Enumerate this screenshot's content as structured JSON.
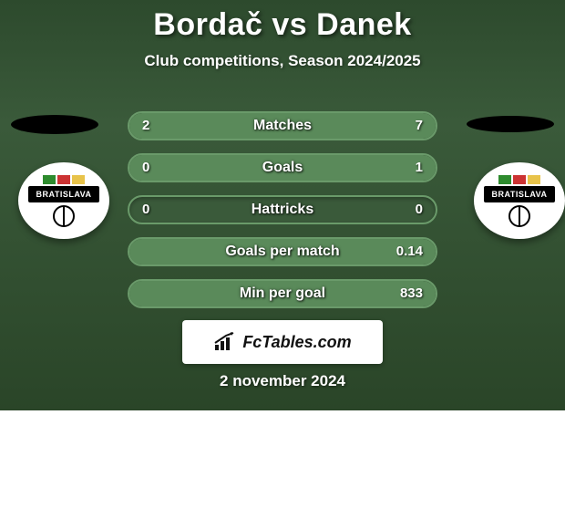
{
  "title": "Bordač vs Danek",
  "subtitle": "Club competitions, Season 2024/2025",
  "date": "2 november 2024",
  "brand": "FcTables.com",
  "badge_text": "BRATISLAVA",
  "colors": {
    "bg_gradient_top": "#2d4a2d",
    "bg_gradient_mid": "#3a5a3a",
    "bg_gradient_bottom": "#2a4528",
    "bar_border": "#6a9a6a",
    "bar_bg": "#3a5a3a",
    "bar_fill": "#5a8a5a",
    "text": "#ffffff",
    "oval": "#000000",
    "badge_bg": "#ffffff",
    "brand_bg": "#ffffff",
    "below_bg": "#ffffff",
    "flag_green": "#2e8b2e",
    "flag_red": "#c33",
    "flag_yellow": "#e8c34a"
  },
  "stats": [
    {
      "label": "Matches",
      "left_val": "2",
      "right_val": "7",
      "left_pct": 22,
      "right_pct": 78
    },
    {
      "label": "Goals",
      "left_val": "0",
      "right_val": "1",
      "left_pct": 0,
      "right_pct": 100
    },
    {
      "label": "Hattricks",
      "left_val": "0",
      "right_val": "0",
      "left_pct": 0,
      "right_pct": 0
    },
    {
      "label": "Goals per match",
      "left_val": "",
      "right_val": "0.14",
      "left_pct": 0,
      "right_pct": 100
    },
    {
      "label": "Min per goal",
      "left_val": "",
      "right_val": "833",
      "left_pct": 0,
      "right_pct": 100
    }
  ]
}
